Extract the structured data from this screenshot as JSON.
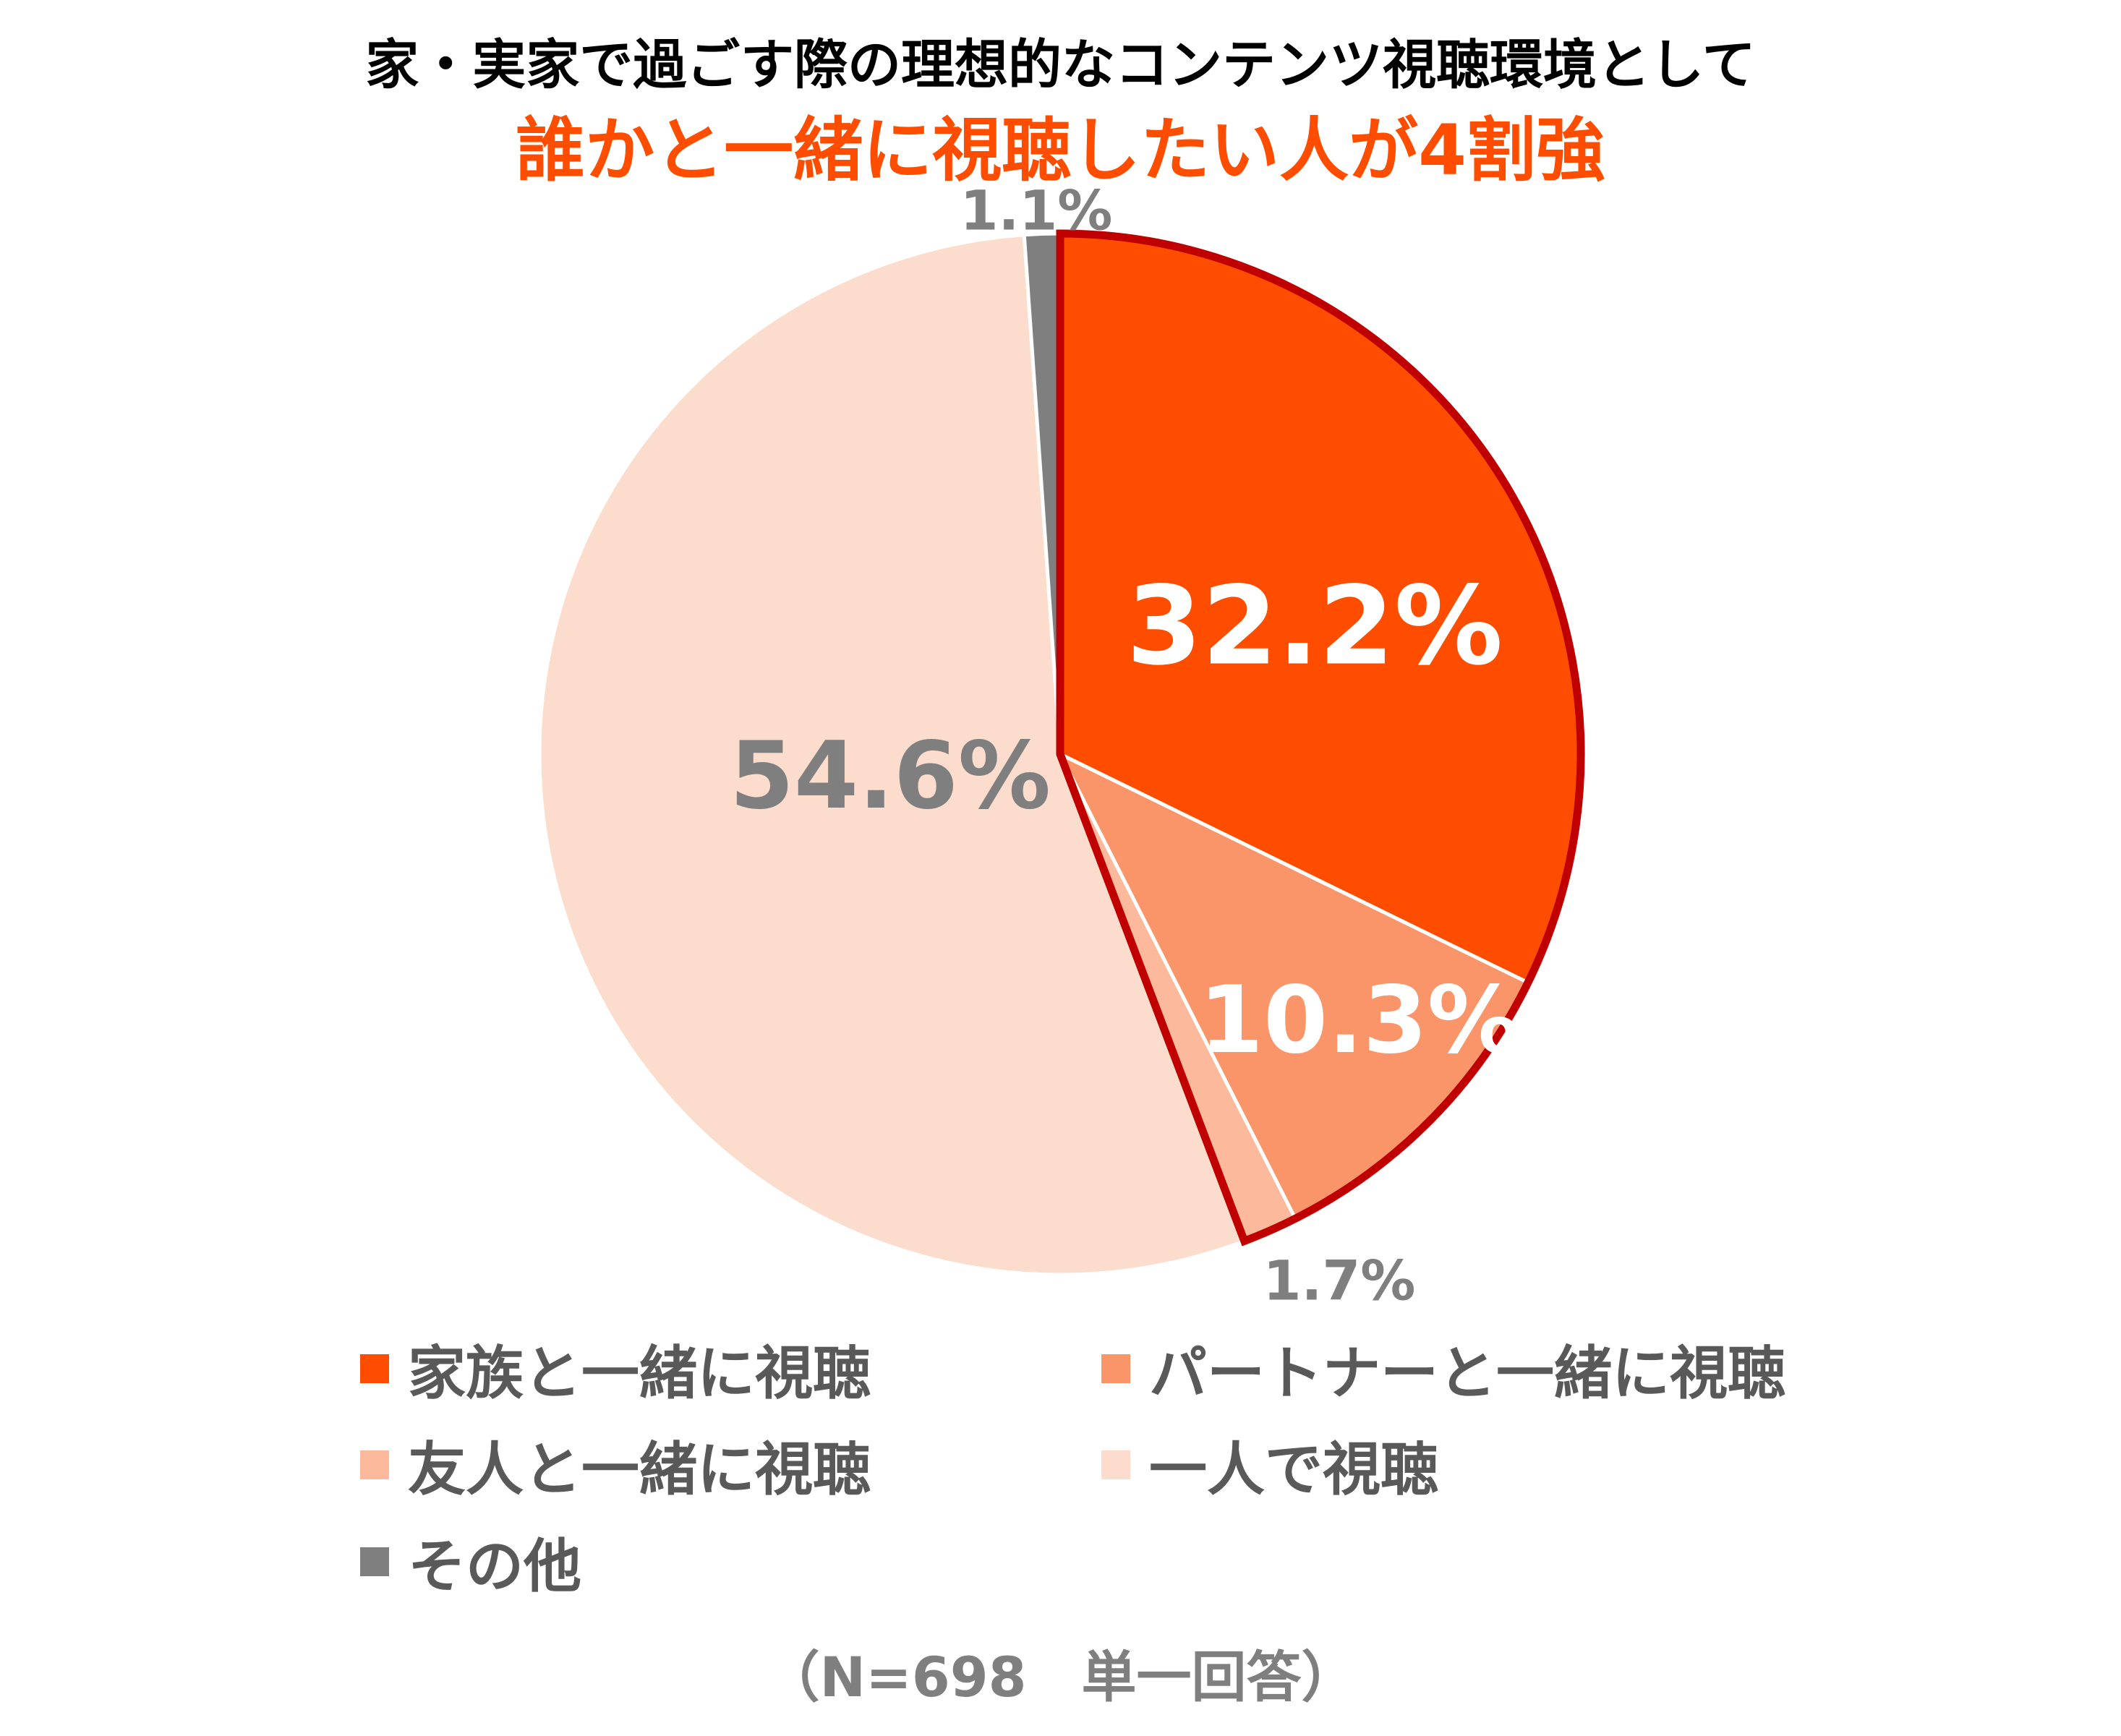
{
  "chart_data": {
    "type": "pie",
    "title": "家・実家で過ごす際の理想的なコンテンツ視聴環境として",
    "subtitle": "誰かと一緒に視聴したい人が4割強",
    "categories": [
      "家族と一緒に視聴",
      "パートナーと一緒に視聴",
      "友人と一緒に視聴",
      "一人で視聴",
      "その他"
    ],
    "values": [
      32.2,
      10.3,
      1.7,
      54.6,
      1.1
    ],
    "labels": [
      "32.2%",
      "10.3%",
      "1.7%",
      "54.6%",
      "1.1%"
    ],
    "colors": [
      "#ff4d00",
      "#fa9469",
      "#fcb99b",
      "#fcdccc",
      "#7f7f7f"
    ],
    "label_colors": [
      "#ffffff",
      "#ffffff",
      "#7f7f7f",
      "#7f7f7f",
      "#7f7f7f"
    ],
    "highlight_color": "#c00000",
    "highlight_categories": [
      "家族と一緒に視聴",
      "パートナーと一緒に視聴",
      "友人と一緒に視聴"
    ],
    "legend_position": "bottom",
    "note": "（N=698　単一回答）"
  }
}
